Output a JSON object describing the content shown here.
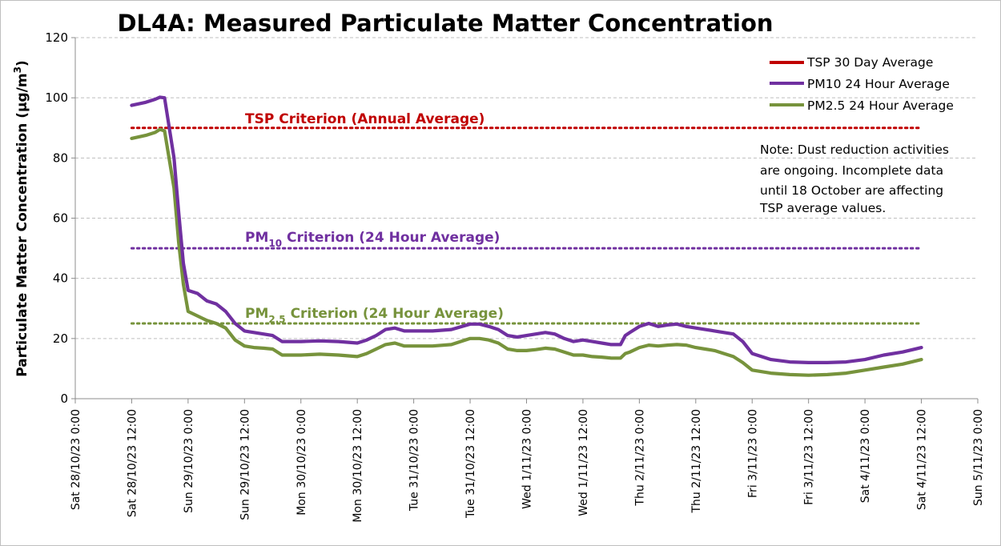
{
  "chart_data": {
    "type": "line",
    "title": "DL4A: Measured Particulate Matter Concentration",
    "ylabel": "Particulate Matter Concentration (µg/m³)",
    "ylabel_main": "Particulate Matter Concentration (µg/m",
    "ylabel_sup": "3",
    "ylabel_close": ")",
    "xlabel": "",
    "ylim": [
      0,
      120
    ],
    "y_ticks": [
      0,
      20,
      40,
      60,
      80,
      100,
      120
    ],
    "x_ticks": [
      "Sat 28/10/23 0:00",
      "Sat 28/10/23 12:00",
      "Sun 29/10/23 0:00",
      "Sun 29/10/23 12:00",
      "Mon 30/10/23 0:00",
      "Mon 30/10/23 12:00",
      "Tue 31/10/23 0:00",
      "Tue 31/10/23 12:00",
      "Wed 1/11/23 0:00",
      "Wed 1/11/23 12:00",
      "Thu 2/11/23 0:00",
      "Thu 2/11/23 12:00",
      "Fri 3/11/23 0:00",
      "Fri 3/11/23 12:00",
      "Sat 4/11/23 0:00",
      "Sat 4/11/23 12:00",
      "Sun 5/11/23 0:00"
    ],
    "x_unit": "hours from Sat 28/10/23 0:00",
    "grid": true,
    "legend_position": "top-right",
    "series": [
      {
        "name": "TSP 30 Day Average",
        "color": "#c00000",
        "x": [],
        "values": []
      },
      {
        "name": "PM10 24 Hour Average",
        "color": "#7030a0",
        "x": [
          12,
          15,
          17,
          18,
          19,
          21,
          22,
          23,
          24,
          26,
          28,
          30,
          32,
          34,
          36,
          38,
          40,
          42,
          44,
          45,
          47,
          48,
          52,
          56,
          60,
          62,
          64,
          66,
          68,
          70,
          72,
          76,
          80,
          84,
          86,
          88,
          90,
          92,
          94,
          96,
          98,
          100,
          102,
          104,
          106,
          108,
          110,
          112,
          114,
          116,
          117,
          118,
          120,
          122,
          124,
          126,
          128,
          130,
          132,
          134,
          136,
          138,
          140,
          142,
          144,
          148,
          152,
          156,
          160,
          164,
          168,
          172,
          176,
          180
        ],
        "values": [
          97.5,
          98.5,
          99.5,
          100.2,
          100,
          80,
          62,
          45,
          36,
          35,
          32.5,
          31.5,
          29,
          25,
          22.5,
          22,
          21.5,
          21,
          19,
          19,
          19,
          19,
          19.2,
          19,
          18.5,
          19.5,
          21,
          23,
          23.5,
          22.5,
          22.5,
          22.5,
          23,
          24.8,
          24.8,
          24,
          23,
          21,
          20.5,
          21,
          21.5,
          22,
          21.5,
          20,
          19,
          19.5,
          19,
          18.5,
          18,
          18,
          21,
          22,
          24,
          25,
          24,
          24.5,
          24.8,
          24,
          23.5,
          23,
          22.5,
          22,
          21.5,
          19,
          15,
          13,
          12.2,
          12,
          12,
          12.2,
          13,
          14.5,
          15.5,
          17
        ]
      },
      {
        "name": "PM2.5 24 Hour Average",
        "color": "#77933c",
        "x": [
          12,
          15,
          17,
          18,
          19,
          21,
          22,
          23,
          24,
          26,
          28,
          30,
          32,
          34,
          36,
          38,
          40,
          42,
          44,
          45,
          47,
          48,
          52,
          56,
          60,
          62,
          64,
          66,
          68,
          70,
          72,
          76,
          80,
          84,
          86,
          88,
          90,
          92,
          94,
          96,
          98,
          100,
          102,
          104,
          106,
          108,
          110,
          112,
          114,
          116,
          117,
          118,
          120,
          122,
          124,
          126,
          128,
          130,
          132,
          134,
          136,
          138,
          140,
          142,
          144,
          148,
          152,
          156,
          160,
          164,
          168,
          172,
          176,
          180
        ],
        "values": [
          86.5,
          87.5,
          88.5,
          89.5,
          89,
          70,
          52,
          38,
          29,
          27.5,
          26,
          25,
          23.5,
          19.5,
          17.5,
          17,
          16.8,
          16.5,
          14.5,
          14.5,
          14.5,
          14.5,
          14.8,
          14.5,
          14,
          15,
          16.5,
          18,
          18.5,
          17.5,
          17.5,
          17.5,
          18,
          20,
          20,
          19.5,
          18.5,
          16.5,
          16,
          16,
          16.3,
          16.8,
          16.5,
          15.5,
          14.5,
          14.5,
          14,
          13.8,
          13.5,
          13.5,
          15,
          15.5,
          17,
          17.8,
          17.5,
          17.8,
          18,
          17.8,
          17,
          16.5,
          16,
          15,
          14,
          12,
          9.5,
          8.5,
          8,
          7.8,
          8,
          8.5,
          9.5,
          10.5,
          11.5,
          13
        ]
      }
    ],
    "criteria": [
      {
        "label": "TSP Criterion (Annual Average)",
        "label_main": "TSP Criterion (Annual Average)",
        "label_sub": "",
        "label_rest": "",
        "value": 90,
        "color": "#c00000"
      },
      {
        "label": "PM10 Criterion (24 Hour Average)",
        "label_main": "PM",
        "label_sub": "10",
        "label_rest": " Criterion (24 Hour Average)",
        "value": 50,
        "color": "#7030a0"
      },
      {
        "label": "PM2.5 Criterion (24 Hour Average)",
        "label_main": "PM",
        "label_sub": "2.5",
        "label_rest": " Criterion (24 Hour Average)",
        "value": 25,
        "color": "#77933c"
      }
    ],
    "note": [
      "Note: Dust reduction activities",
      "are ongoing. Incomplete data",
      "until 18 October are affecting",
      "TSP average values."
    ]
  }
}
